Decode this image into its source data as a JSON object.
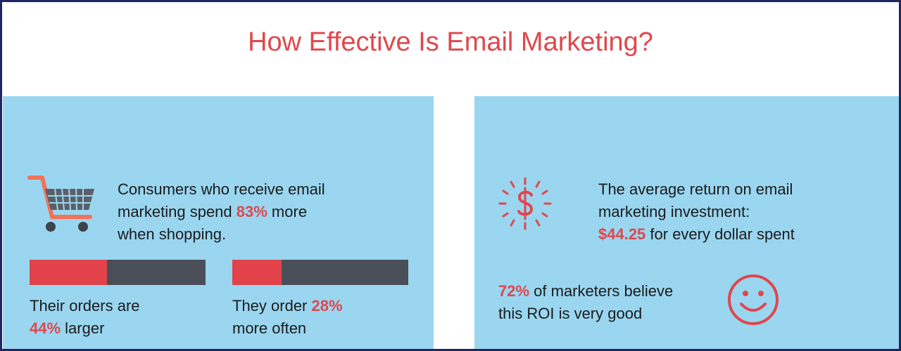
{
  "header": {
    "title": "How Effective Is Email Marketing?"
  },
  "left": {
    "stat": {
      "before": "Consumers who receive email\nmarketing spend ",
      "highlight": "83%",
      "after": " more\nwhen shopping."
    },
    "bars": [
      {
        "before": "Their orders are\n",
        "highlight": "44%",
        "after": " larger",
        "value": 44
      },
      {
        "before": "They order ",
        "highlight": "28%",
        "after": "\nmore often",
        "value": 28
      }
    ]
  },
  "right": {
    "roi": {
      "before": "The average return on email\nmarketing investment:\n",
      "highlight": "$44.25",
      "after": " for every dollar spent"
    },
    "opinion": {
      "highlight": "72%",
      "after": " of marketers believe\nthis ROI is very good"
    }
  }
}
